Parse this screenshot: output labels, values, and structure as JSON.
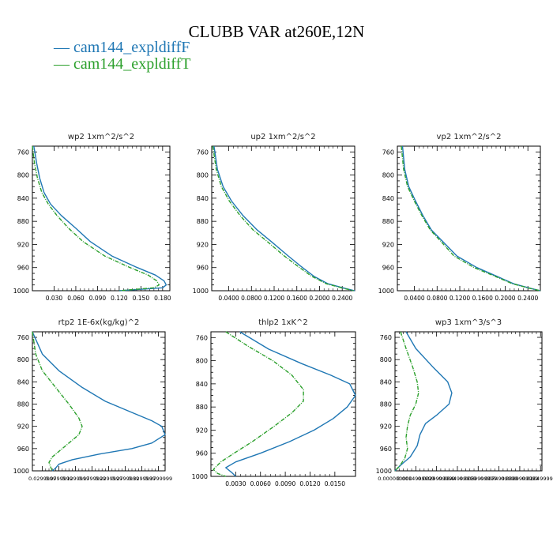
{
  "figure": {
    "title": "CLUBB VAR at260E,12N",
    "legend": [
      {
        "label": "— cam144_expldiffF",
        "color": "#1f77b4"
      },
      {
        "label": "— cam144_expldiffT",
        "color": "#2ca02c"
      }
    ]
  },
  "chart_data": [
    {
      "type": "line",
      "title": "wp2  1xm^2/s^2",
      "ylim": [
        1000,
        750
      ],
      "xlim": [
        0,
        0.19
      ],
      "xticks": [
        0.03,
        0.06,
        0.09,
        0.12,
        0.15,
        0.18
      ],
      "xtick_labels": [
        "0.030",
        "0.060",
        "0.090",
        "0.120",
        "0.150",
        "0.180"
      ],
      "yticks": [
        760,
        800,
        840,
        880,
        920,
        960,
        1000
      ],
      "series": [
        {
          "name": "cam144_expldiffF",
          "color": "#1f77b4",
          "x": [
            0.002,
            0.006,
            0.01,
            0.016,
            0.025,
            0.04,
            0.06,
            0.08,
            0.11,
            0.145,
            0.17,
            0.182,
            0.185,
            0.18,
            0.12
          ],
          "y": [
            750,
            780,
            805,
            830,
            850,
            870,
            892,
            915,
            940,
            960,
            973,
            983,
            990,
            995,
            1000
          ]
        },
        {
          "name": "cam144_expldiffT",
          "color": "#2ca02c",
          "x": [
            0.0,
            0.003,
            0.007,
            0.013,
            0.022,
            0.034,
            0.05,
            0.07,
            0.1,
            0.135,
            0.16,
            0.172,
            0.175,
            0.168,
            0.12
          ],
          "y": [
            750,
            780,
            805,
            830,
            850,
            870,
            892,
            915,
            940,
            960,
            973,
            983,
            990,
            995,
            1000
          ]
        }
      ]
    },
    {
      "type": "line",
      "title": "up2  1xm^2/s^2",
      "ylim": [
        1000,
        750
      ],
      "xlim": [
        0.01,
        0.262
      ],
      "xticks": [
        0.04,
        0.08,
        0.12,
        0.16,
        0.2,
        0.24
      ],
      "xtick_labels": [
        "0.0400",
        "0.0800",
        "0.1200",
        "0.1600",
        "0.2000",
        "0.2400"
      ],
      "yticks": [
        760,
        800,
        840,
        880,
        920,
        960,
        1000
      ],
      "series": [
        {
          "name": "cam144_expldiffF",
          "color": "#1f77b4",
          "x": [
            0.014,
            0.02,
            0.03,
            0.045,
            0.065,
            0.09,
            0.115,
            0.145,
            0.17,
            0.19,
            0.215,
            0.245,
            0.262
          ],
          "y": [
            750,
            790,
            820,
            845,
            870,
            895,
            915,
            940,
            960,
            975,
            988,
            996,
            1000
          ]
        },
        {
          "name": "cam144_expldiffT",
          "color": "#2ca02c",
          "x": [
            0.012,
            0.018,
            0.027,
            0.041,
            0.06,
            0.083,
            0.108,
            0.138,
            0.165,
            0.186,
            0.212,
            0.243,
            0.26
          ],
          "y": [
            750,
            790,
            820,
            845,
            870,
            895,
            915,
            940,
            960,
            975,
            988,
            996,
            1000
          ]
        }
      ]
    },
    {
      "type": "line",
      "title": "vp2  1xm^2/s^2",
      "ylim": [
        1000,
        750
      ],
      "xlim": [
        0.01,
        0.262
      ],
      "xticks": [
        0.04,
        0.08,
        0.12,
        0.16,
        0.2,
        0.24
      ],
      "xtick_labels": [
        "0.0400",
        "0.0800",
        "0.1200",
        "0.1600",
        "0.2000",
        "0.2400"
      ],
      "yticks": [
        760,
        800,
        840,
        880,
        920,
        960,
        1000
      ],
      "series": [
        {
          "name": "cam144_expldiffF",
          "color": "#1f77b4",
          "x": [
            0.019,
            0.023,
            0.03,
            0.042,
            0.055,
            0.07,
            0.09,
            0.115,
            0.15,
            0.185,
            0.215,
            0.245,
            0.262
          ],
          "y": [
            750,
            790,
            820,
            845,
            870,
            895,
            915,
            940,
            960,
            975,
            988,
            996,
            1000
          ]
        },
        {
          "name": "cam144_expldiffT",
          "color": "#2ca02c",
          "x": [
            0.017,
            0.021,
            0.028,
            0.04,
            0.053,
            0.068,
            0.087,
            0.11,
            0.145,
            0.182,
            0.213,
            0.244,
            0.262
          ],
          "y": [
            750,
            790,
            820,
            845,
            870,
            895,
            915,
            940,
            960,
            975,
            988,
            996,
            1000
          ]
        }
      ]
    },
    {
      "type": "line",
      "title": "rtp2  1E-6x(kg/kg)^2",
      "ylim": [
        1000,
        750
      ],
      "xlim": [
        0.0,
        0.4
      ],
      "xticks": [
        0.03,
        0.08,
        0.13,
        0.18,
        0.23,
        0.28,
        0.33,
        0.38
      ],
      "xtick_labels": [
        "0.0299999",
        "0.0799999",
        "0.1299999",
        "0.1799999",
        "0.2299999",
        "0.2799999",
        "0.3299999",
        "0.3799999"
      ],
      "yticks": [
        760,
        800,
        840,
        880,
        920,
        960,
        1000
      ],
      "series": [
        {
          "name": "cam144_expldiffF",
          "color": "#1f77b4",
          "x": [
            0.0,
            0.03,
            0.08,
            0.15,
            0.22,
            0.3,
            0.36,
            0.39,
            0.4,
            0.36,
            0.3,
            0.2,
            0.12,
            0.08,
            0.07,
            0.06
          ],
          "y": [
            750,
            790,
            820,
            850,
            875,
            895,
            910,
            920,
            935,
            950,
            960,
            970,
            980,
            988,
            995,
            1000
          ]
        },
        {
          "name": "cam144_expldiffT",
          "color": "#2ca02c",
          "x": [
            0.0,
            0.01,
            0.03,
            0.07,
            0.11,
            0.14,
            0.15,
            0.14,
            0.11,
            0.08,
            0.06,
            0.05,
            0.055,
            0.06
          ],
          "y": [
            750,
            790,
            820,
            850,
            880,
            905,
            920,
            935,
            950,
            965,
            975,
            985,
            993,
            1000
          ]
        }
      ]
    },
    {
      "type": "line",
      "title": "thlp2  1xK^2",
      "ylim": [
        1000,
        750
      ],
      "xlim": [
        0.0,
        0.0175
      ],
      "xticks": [
        0.003,
        0.006,
        0.009,
        0.012,
        0.015
      ],
      "xtick_labels": [
        "0.0030",
        "0.0060",
        "0.0090",
        "0.0120",
        "0.0150"
      ],
      "yticks": [
        760,
        800,
        840,
        880,
        920,
        960,
        1000
      ],
      "series": [
        {
          "name": "cam144_expldiffF",
          "color": "#1f77b4",
          "x": [
            0.0035,
            0.007,
            0.011,
            0.0145,
            0.0168,
            0.0175,
            0.0165,
            0.0148,
            0.0125,
            0.0095,
            0.006,
            0.003,
            0.0018,
            0.0025,
            0.003
          ],
          "y": [
            750,
            780,
            805,
            825,
            840,
            860,
            880,
            900,
            920,
            940,
            960,
            975,
            985,
            993,
            1000
          ]
        },
        {
          "name": "cam144_expldiffT",
          "color": "#2ca02c",
          "x": [
            0.0018,
            0.0045,
            0.0075,
            0.0098,
            0.0112,
            0.0112,
            0.0098,
            0.0075,
            0.005,
            0.0028,
            0.0012,
            0.0003,
            0.0008,
            0.0018
          ],
          "y": [
            750,
            775,
            800,
            825,
            850,
            870,
            890,
            915,
            940,
            960,
            975,
            988,
            995,
            1000
          ]
        }
      ]
    },
    {
      "type": "line",
      "title": "wp3  1xm^3/s^3",
      "ylim": [
        1000,
        750
      ],
      "xlim": [
        0.0,
        0.0106
      ],
      "xticks": [
        0.0,
        0.0015,
        0.003,
        0.0045,
        0.006,
        0.0075,
        0.009,
        0.0105
      ],
      "xtick_labels": [
        "0.000000000",
        "0.0014999999",
        "0.0029999999",
        "0.0044999999",
        "0.0059999999",
        "0.0074999999",
        "0.0089999999",
        "0.0104999994"
      ],
      "yticks": [
        760,
        800,
        840,
        880,
        920,
        960,
        1000
      ],
      "series": [
        {
          "name": "cam144_expldiffF",
          "color": "#1f77b4",
          "x": [
            0.0008,
            0.0015,
            0.0028,
            0.0038,
            0.0041,
            0.0039,
            0.003,
            0.0022,
            0.0018,
            0.0016,
            0.0011,
            0.0004,
            0.0
          ],
          "y": [
            750,
            780,
            815,
            840,
            860,
            880,
            900,
            915,
            935,
            955,
            975,
            990,
            1000
          ]
        },
        {
          "name": "cam144_expldiffT",
          "color": "#2ca02c",
          "x": [
            0.0004,
            0.0008,
            0.0013,
            0.0016,
            0.0017,
            0.0015,
            0.0011,
            0.0009,
            0.0008,
            0.0009,
            0.0007,
            0.0003,
            0.0
          ],
          "y": [
            750,
            780,
            815,
            840,
            860,
            880,
            900,
            920,
            940,
            960,
            978,
            992,
            1000
          ]
        }
      ]
    }
  ]
}
